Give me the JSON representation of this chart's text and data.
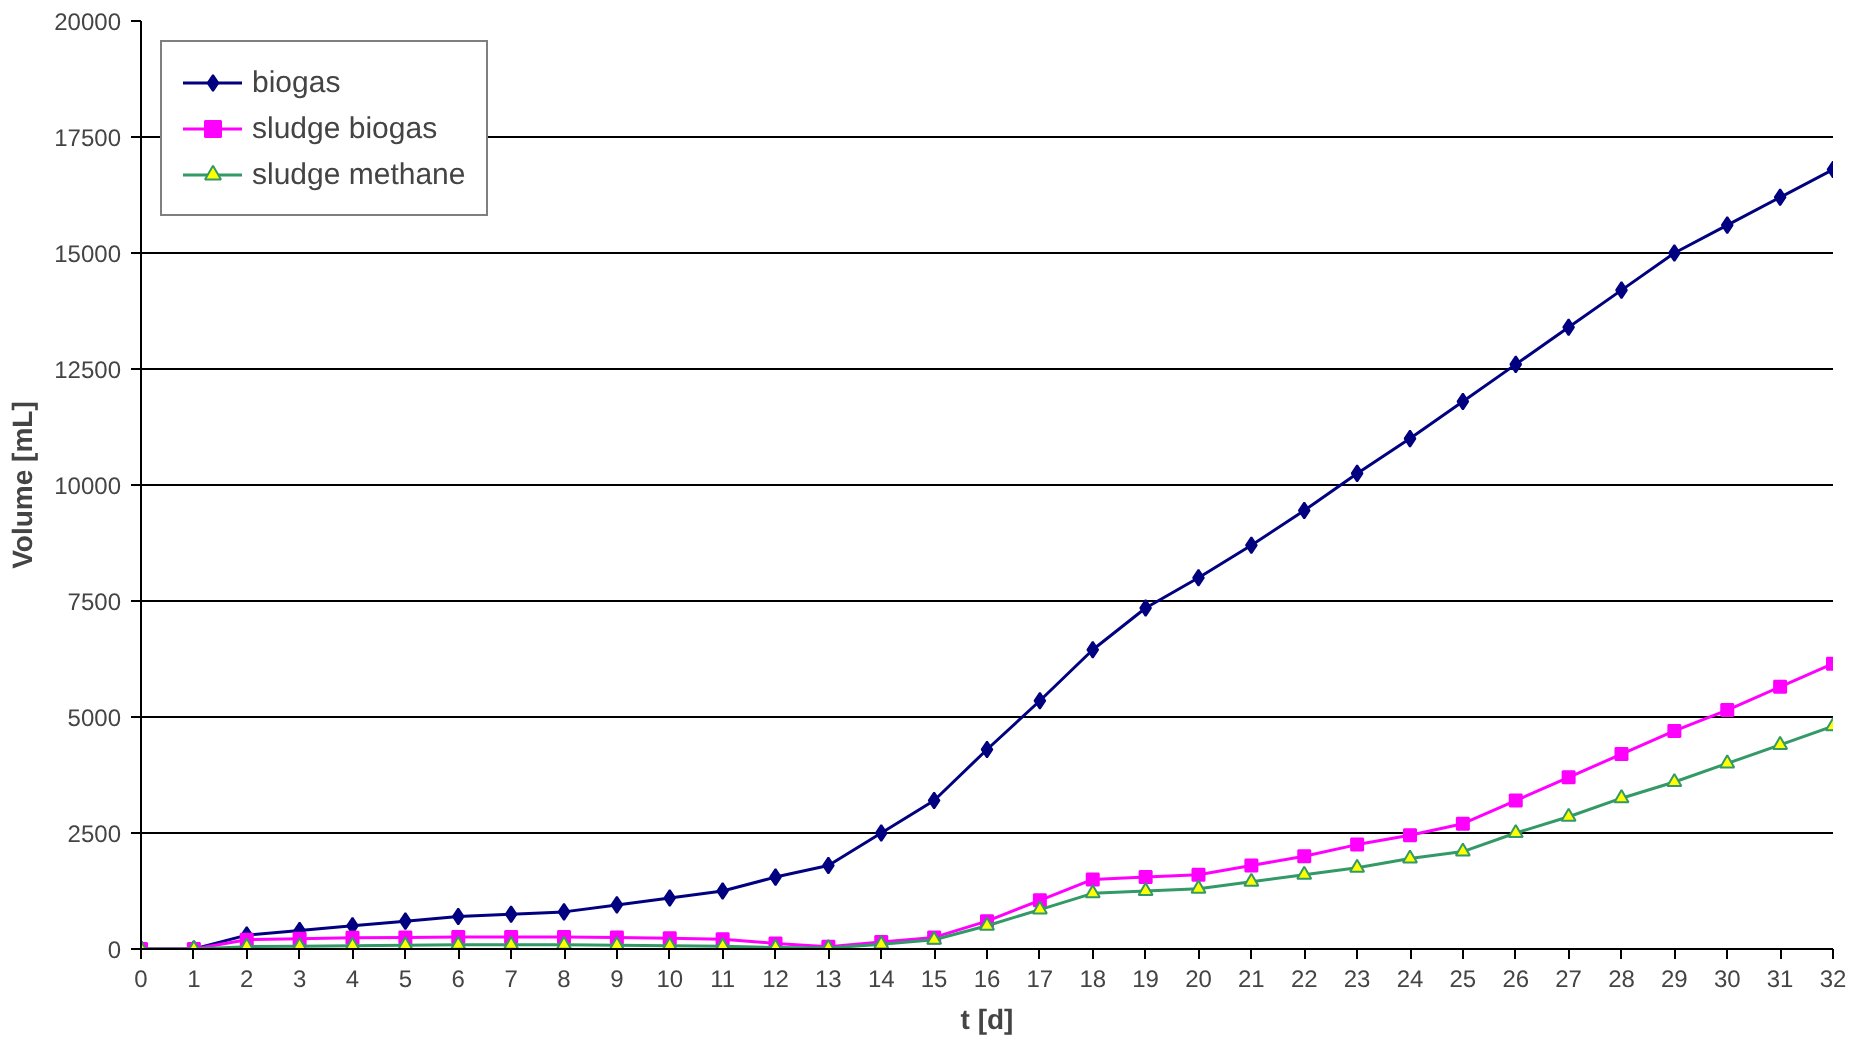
{
  "chart_data": {
    "type": "line",
    "xlabel": "t [d]",
    "ylabel": "Volume [mL]",
    "x": [
      0,
      1,
      2,
      3,
      4,
      5,
      6,
      7,
      8,
      9,
      10,
      11,
      12,
      13,
      14,
      15,
      16,
      17,
      18,
      19,
      20,
      21,
      22,
      23,
      24,
      25,
      26,
      27,
      28,
      29,
      30,
      31,
      32
    ],
    "xlim": [
      0,
      32
    ],
    "xticks": [
      0,
      1,
      2,
      3,
      4,
      5,
      6,
      7,
      8,
      9,
      10,
      11,
      12,
      13,
      14,
      15,
      16,
      17,
      18,
      19,
      20,
      21,
      22,
      23,
      24,
      25,
      26,
      27,
      28,
      29,
      30,
      31,
      32
    ],
    "ylim": [
      0,
      20000
    ],
    "yticks": [
      0,
      2500,
      5000,
      7500,
      10000,
      12500,
      15000,
      17500,
      20000
    ],
    "grid": "y",
    "legend": "top left",
    "line_style": "solid",
    "series": [
      {
        "name": "biogas",
        "color": "#000080",
        "marker": "diamond",
        "values": [
          0,
          0,
          300,
          400,
          500,
          600,
          700,
          750,
          800,
          950,
          1100,
          1250,
          1550,
          1800,
          2500,
          3200,
          4300,
          5350,
          6450,
          7350,
          8000,
          8700,
          9450,
          10250,
          11000,
          11800,
          12600,
          13400,
          14200,
          15000,
          15600,
          16200,
          16800
        ]
      },
      {
        "name": "sludge biogas",
        "color": "#ff00ff",
        "marker": "square",
        "values": [
          0,
          0,
          200,
          220,
          240,
          250,
          260,
          260,
          260,
          250,
          230,
          210,
          120,
          50,
          150,
          250,
          600,
          1050,
          1500,
          1550,
          1600,
          1800,
          2000,
          2250,
          2450,
          2700,
          3200,
          3700,
          4200,
          4700,
          5150,
          5650,
          6150
        ]
      },
      {
        "name": "sludge methane",
        "color": "#339966",
        "marker": "triangle",
        "values": [
          0,
          0,
          50,
          60,
          70,
          80,
          90,
          90,
          90,
          80,
          70,
          60,
          30,
          20,
          100,
          200,
          500,
          850,
          1200,
          1250,
          1300,
          1450,
          1600,
          1750,
          1950,
          2100,
          2500,
          2850,
          3250,
          3600,
          4000,
          4400,
          4800
        ]
      }
    ]
  }
}
